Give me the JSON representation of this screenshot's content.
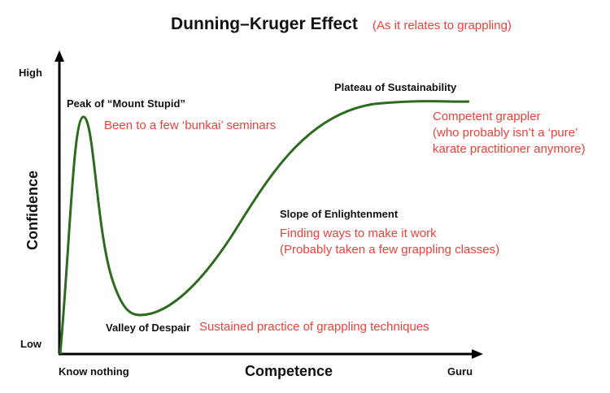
{
  "title": "Dunning–Kruger Effect",
  "subtitle": "(As it relates to grappling)",
  "colors": {
    "curve": "#2e6b1f",
    "annotation": "#e8423b",
    "axis": "#000000"
  },
  "axes": {
    "y_high": "High",
    "y_low": "Low",
    "y_title": "Confidence",
    "x_left": "Know nothing",
    "x_right": "Guru",
    "x_title": "Competence"
  },
  "stages": {
    "peak": {
      "name": "Peak of “Mount Stupid”",
      "note": [
        "Been to a few ‘bunkai’ seminars"
      ]
    },
    "valley": {
      "name": "Valley of Despair",
      "note": [
        "Sustained practice of grappling techniques"
      ]
    },
    "slope": {
      "name": "Slope of Enlightenment",
      "note": [
        "Finding ways to make it work",
        "(Probably taken a few grappling classes)"
      ]
    },
    "plateau": {
      "name": "Plateau of Sustainability",
      "note": [
        "Competent grappler",
        "(who probably isn’t a ‘pure’",
        "karate practitioner anymore)"
      ]
    }
  }
}
